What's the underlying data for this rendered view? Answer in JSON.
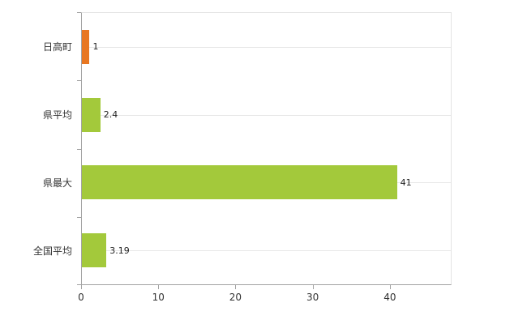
{
  "chart_data": {
    "type": "bar",
    "orientation": "horizontal",
    "title": "",
    "categories": [
      "日高町",
      "県平均",
      "県最大",
      "全国平均"
    ],
    "values": [
      1,
      2.4,
      41,
      3.19
    ],
    "value_labels": [
      "1",
      "2.4",
      "41",
      "3.19"
    ],
    "bar_colors": [
      "#e87722",
      "#a3c93b",
      "#a3c93b",
      "#a3c93b"
    ],
    "xlim": [
      0,
      48
    ],
    "x_ticks": [
      0,
      10,
      20,
      30,
      40
    ],
    "xlabel": "",
    "ylabel": "",
    "grid": "horizontal-light",
    "legend": "none",
    "background": "#ffffff",
    "axis_color": "#a3a3a3",
    "grid_color": "#e7e7e7"
  }
}
